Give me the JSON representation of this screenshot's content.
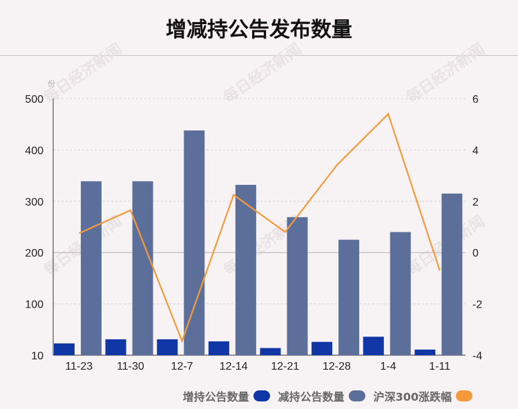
{
  "title": "增减持公告发布数量",
  "watermark": "每日经济新闻",
  "chart_data": {
    "type": "bar",
    "categories": [
      "11-23",
      "11-30",
      "12-7",
      "12-14",
      "12-21",
      "12-28",
      "1-4",
      "1-11"
    ],
    "series": [
      {
        "name": "增持公告数量",
        "type": "bar",
        "axis": "left",
        "color": "#1136a6",
        "values": [
          23,
          31,
          31,
          27,
          14,
          26,
          36,
          11
        ]
      },
      {
        "name": "减持公告数量",
        "type": "bar",
        "axis": "left",
        "color": "#5b6f9a",
        "values": [
          339,
          339,
          438,
          332,
          269,
          225,
          240,
          315
        ]
      },
      {
        "name": "沪深300涨跌幅",
        "type": "line",
        "axis": "right",
        "color": "#f59a3b",
        "values": [
          0.75,
          1.65,
          -3.45,
          2.25,
          0.8,
          3.4,
          5.4,
          -0.7
        ]
      }
    ],
    "ylabel_left": "份",
    "yticks_left": [
      "10",
      "100",
      "200",
      "300",
      "400",
      "500"
    ],
    "ylim_left": [
      0,
      500
    ],
    "yticks_right": [
      "-4",
      "-2",
      "0",
      "2",
      "4",
      "6"
    ],
    "ylim_right": [
      -4,
      6
    ],
    "grid": true,
    "legend_position": "bottom-right"
  }
}
